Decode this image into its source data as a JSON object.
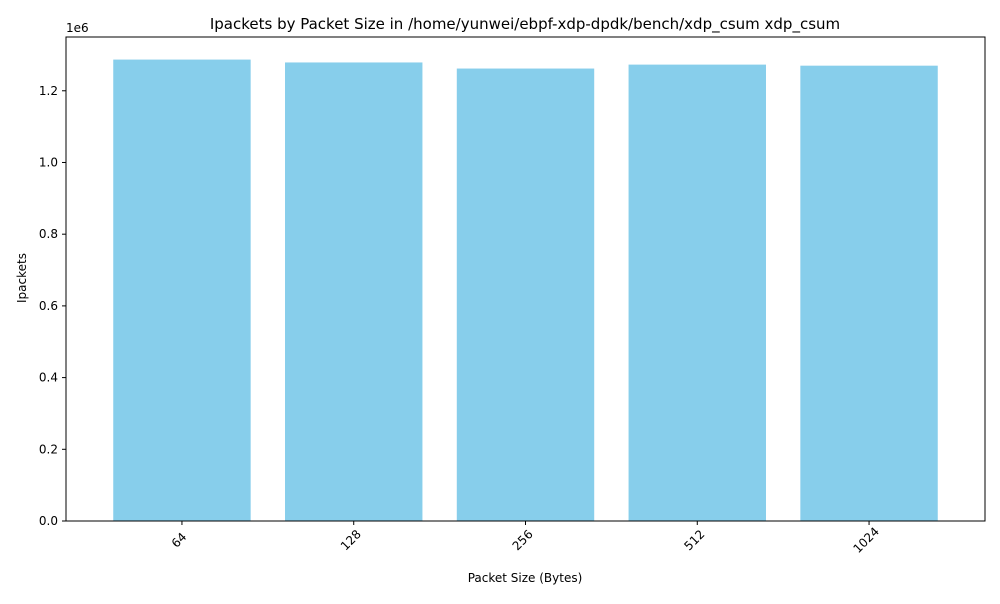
{
  "chart_data": {
    "type": "bar",
    "title": "Ipackets by Packet Size in /home/yunwei/ebpf-xdp-dpdk/bench/xdp_csum xdp_csum",
    "xlabel": "Packet Size (Bytes)",
    "ylabel": "Ipackets",
    "categories": [
      "64",
      "128",
      "256",
      "512",
      "1024"
    ],
    "values": [
      1287000,
      1279000,
      1262000,
      1273000,
      1270000
    ],
    "ylim": [
      0,
      1350000
    ],
    "y_ticks": [
      0,
      200000,
      400000,
      600000,
      800000,
      1000000,
      1200000
    ],
    "y_tick_labels": [
      "0.0",
      "0.2",
      "0.4",
      "0.6",
      "0.8",
      "1.0",
      "1.2"
    ],
    "y_offset_label": "1e6",
    "x_tick_rotation_deg": 45,
    "bar_color": "#87CEEB",
    "grid": false,
    "legend": "none"
  }
}
